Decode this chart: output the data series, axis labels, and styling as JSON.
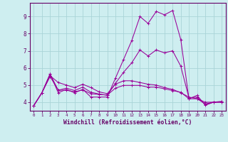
{
  "title": "",
  "xlabel": "Windchill (Refroidissement éolien,°C)",
  "background_color": "#ceeef0",
  "grid_color": "#aad4d8",
  "line_color": "#990099",
  "spine_color": "#660066",
  "xlim": [
    -0.5,
    23.5
  ],
  "ylim": [
    3.5,
    9.8
  ],
  "xticks": [
    0,
    1,
    2,
    3,
    4,
    5,
    6,
    7,
    8,
    9,
    10,
    11,
    12,
    13,
    14,
    15,
    16,
    17,
    18,
    19,
    20,
    21,
    22,
    23
  ],
  "yticks": [
    4,
    5,
    6,
    7,
    8,
    9
  ],
  "hours": [
    0,
    1,
    2,
    3,
    4,
    5,
    6,
    7,
    8,
    9,
    10,
    11,
    12,
    13,
    14,
    15,
    16,
    17,
    18,
    19,
    20,
    21,
    22,
    23
  ],
  "line1": [
    3.8,
    4.55,
    5.65,
    4.55,
    4.75,
    4.55,
    4.75,
    4.3,
    4.3,
    4.3,
    5.4,
    6.5,
    7.6,
    9.0,
    8.6,
    9.3,
    9.1,
    9.35,
    7.65,
    4.2,
    4.4,
    3.82,
    4.0,
    4.05
  ],
  "line2": [
    3.8,
    4.55,
    5.55,
    5.15,
    5.0,
    4.85,
    5.05,
    4.85,
    4.6,
    4.5,
    5.05,
    5.25,
    5.25,
    5.15,
    5.05,
    5.0,
    4.85,
    4.75,
    4.55,
    4.3,
    4.2,
    4.0,
    4.0,
    4.0
  ],
  "line3": [
    3.8,
    4.55,
    5.5,
    4.7,
    4.7,
    4.6,
    4.72,
    4.5,
    4.45,
    4.42,
    4.82,
    4.98,
    4.98,
    4.98,
    4.88,
    4.88,
    4.78,
    4.68,
    4.58,
    4.2,
    4.2,
    3.9,
    4.0,
    4.0
  ],
  "line4": [
    3.8,
    4.55,
    5.65,
    4.7,
    4.82,
    4.68,
    4.88,
    4.58,
    4.48,
    4.4,
    5.1,
    5.75,
    6.3,
    7.05,
    6.7,
    7.05,
    6.88,
    7.0,
    6.1,
    4.25,
    4.3,
    3.86,
    4.0,
    4.02
  ]
}
